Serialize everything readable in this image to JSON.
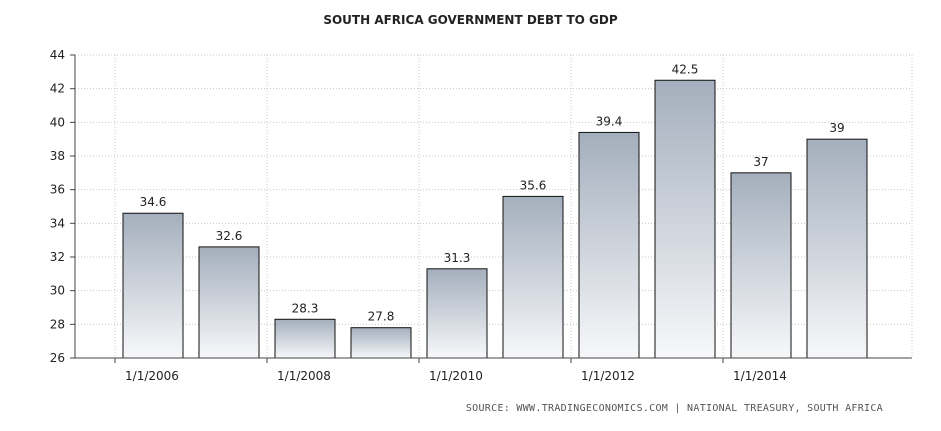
{
  "chart_data": {
    "type": "bar",
    "title": "SOUTH AFRICA GOVERNMENT DEBT TO GDP",
    "categories": [
      "1/1/2006",
      "",
      "1/1/2008",
      "",
      "1/1/2010",
      "",
      "1/1/2012",
      "",
      "1/1/2014",
      ""
    ],
    "values": [
      34.6,
      32.6,
      28.3,
      27.8,
      31.3,
      35.6,
      39.4,
      42.5,
      37,
      39
    ],
    "data_labels": [
      "34.6",
      "32.6",
      "28.3",
      "27.8",
      "31.3",
      "35.6",
      "39.4",
      "42.5",
      "37",
      "39"
    ],
    "x_tick_labels": [
      "1/1/2006",
      "1/1/2008",
      "1/1/2010",
      "1/1/2012",
      "1/1/2014"
    ],
    "y_ticks": [
      26,
      28,
      30,
      32,
      34,
      36,
      38,
      40,
      42,
      44
    ],
    "ylim": [
      26,
      44
    ],
    "grid": true,
    "legend": false,
    "source": "SOURCE: WWW.TRADINGECONOMICS.COM | NATIONAL TREASURY, SOUTH AFRICA"
  }
}
